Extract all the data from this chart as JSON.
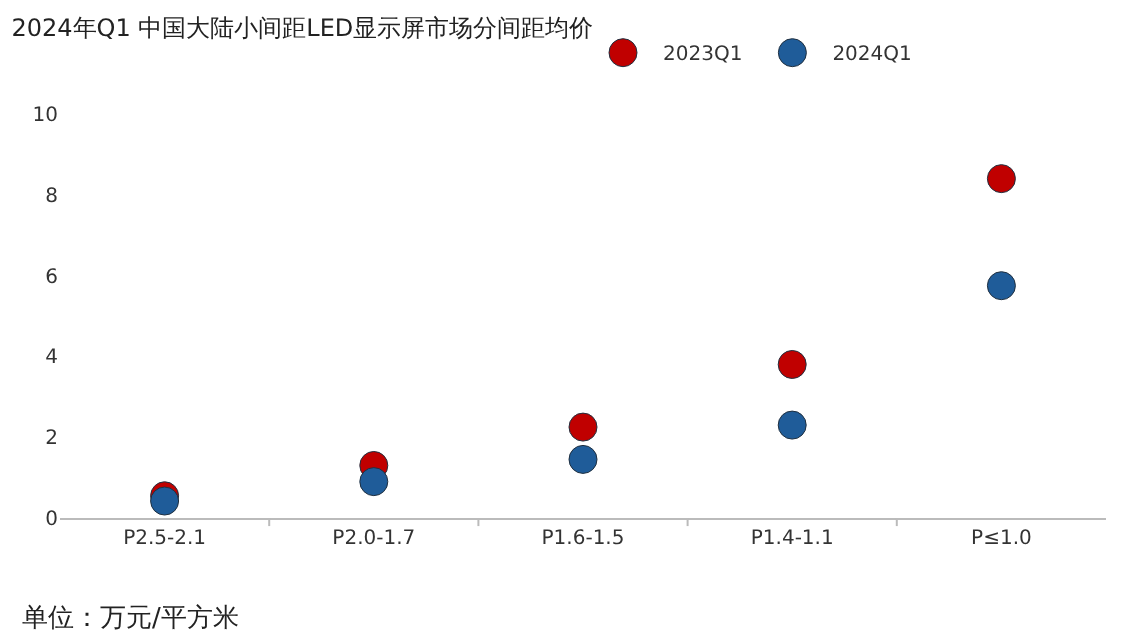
{
  "chart_data": {
    "type": "scatter",
    "title": "2024年Q1 中国大陆小间距LED显示屏市场分间距均价",
    "categories": [
      "P2.5-2.1",
      "P2.0-1.7",
      "P1.6-1.5",
      "P1.4-1.1",
      "P≤1.0"
    ],
    "series": [
      {
        "name": "2023Q1",
        "color": "#c00000",
        "values": [
          0.55,
          1.3,
          2.25,
          3.8,
          8.4
        ]
      },
      {
        "name": "2024Q1",
        "color": "#1f5c99",
        "values": [
          0.42,
          0.9,
          1.45,
          2.3,
          5.75
        ]
      }
    ],
    "ylim": [
      0,
      10
    ],
    "yticks": [
      0,
      2,
      4,
      6,
      8,
      10
    ],
    "grid": false,
    "legend": "top",
    "marker": "circle",
    "annotations": [
      "单位：万元/平方米"
    ]
  }
}
